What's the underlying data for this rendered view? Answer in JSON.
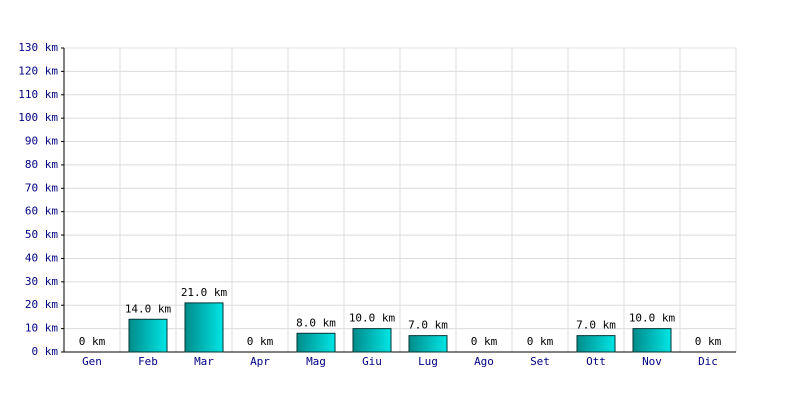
{
  "chart_data": {
    "type": "bar",
    "categories": [
      "Gen",
      "Feb",
      "Mar",
      "Apr",
      "Mag",
      "Giu",
      "Lug",
      "Ago",
      "Set",
      "Ott",
      "Nov",
      "Dic"
    ],
    "values": [
      0,
      14,
      21,
      0,
      8,
      10,
      7,
      0,
      0,
      7,
      10,
      0
    ],
    "value_labels": [
      "0 km",
      "14.0 km",
      "21.0 km",
      "0 km",
      "8.0 km",
      "10.0 km",
      "7.0 km",
      "0 km",
      "0 km",
      "7.0 km",
      "10.0 km",
      "0 km"
    ],
    "color": "#00e5e5",
    "ylim": [
      0,
      130
    ],
    "yticks": [
      {
        "value": 0,
        "label": "0 km"
      },
      {
        "value": 10,
        "label": "10 km"
      },
      {
        "value": 20,
        "label": "20 km"
      },
      {
        "value": 30,
        "label": "30 km"
      },
      {
        "value": 40,
        "label": "40 km"
      },
      {
        "value": 50,
        "label": "50 km"
      },
      {
        "value": 60,
        "label": "60 km"
      },
      {
        "value": 70,
        "label": "70 km"
      },
      {
        "value": 80,
        "label": "80 km"
      },
      {
        "value": 90,
        "label": "90 km"
      },
      {
        "value": 100,
        "label": "100 km"
      },
      {
        "value": 110,
        "label": "110 km"
      },
      {
        "value": 120,
        "label": "120 km"
      },
      {
        "value": 130,
        "label": "130 km"
      }
    ],
    "grid": true
  }
}
